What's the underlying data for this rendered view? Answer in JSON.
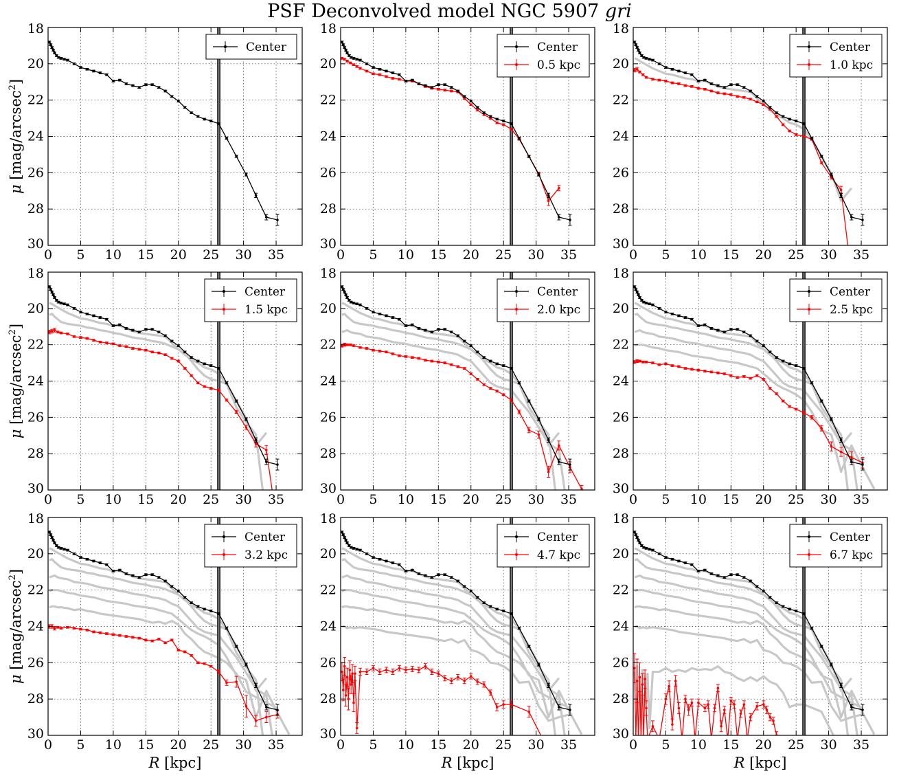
{
  "figure": {
    "title_prefix": "PSF Deconvolved model NGC 5907 ",
    "title_band": "gri"
  },
  "chart_data": {
    "type": "line",
    "layout": "3x3 grid",
    "xlabel_symbol": "R",
    "xlabel_unit": " [kpc]",
    "ylabel_symbol": "μ",
    "ylabel_unit": " [mag/arcsec",
    "ylabel_sup": "2",
    "ylabel_close": "]",
    "xlim": [
      0,
      39
    ],
    "ylim": [
      30,
      18
    ],
    "xticks": [
      0,
      5,
      10,
      15,
      20,
      25,
      30,
      35
    ],
    "yticks": [
      18,
      20,
      22,
      24,
      26,
      28,
      30
    ],
    "grid": true,
    "vertical_line_x": 26.2,
    "legend_position": "top-right",
    "colors": {
      "center": "#000000",
      "offset": "#ff0000",
      "background": "#c8c8c8"
    },
    "center_series": {
      "name": "Center",
      "x": [
        0.2,
        0.4,
        0.6,
        0.8,
        1.0,
        1.3,
        1.6,
        2.0,
        2.5,
        3.0,
        4.0,
        5.0,
        6.0,
        7.0,
        8.0,
        9.0,
        10.0,
        11.0,
        12.0,
        13.0,
        14.0,
        15.0,
        16.0,
        17.0,
        18.0,
        19.0,
        20.0,
        21.0,
        22.0,
        23.0,
        24.0,
        25.0,
        26.2,
        27.4,
        28.9,
        30.4,
        31.9,
        33.5,
        35.2
      ],
      "y": [
        18.8,
        18.95,
        19.1,
        19.25,
        19.4,
        19.55,
        19.65,
        19.7,
        19.75,
        19.8,
        20.0,
        20.2,
        20.3,
        20.4,
        20.5,
        20.6,
        20.95,
        20.9,
        21.1,
        21.2,
        21.3,
        21.15,
        21.15,
        21.3,
        21.5,
        21.8,
        22.05,
        22.4,
        22.7,
        22.9,
        23.05,
        23.15,
        23.3,
        24.1,
        25.1,
        26.1,
        27.25,
        28.45,
        28.6
      ],
      "yerr": [
        0.05,
        0.05,
        0.05,
        0.05,
        0.05,
        0.05,
        0.05,
        0.05,
        0.05,
        0.05,
        0.05,
        0.05,
        0.05,
        0.05,
        0.05,
        0.05,
        0.05,
        0.05,
        0.05,
        0.05,
        0.05,
        0.05,
        0.05,
        0.05,
        0.05,
        0.05,
        0.05,
        0.05,
        0.05,
        0.05,
        0.05,
        0.05,
        0.05,
        0.06,
        0.06,
        0.08,
        0.12,
        0.15,
        0.3
      ]
    },
    "panels": [
      {
        "label": "",
        "x": [],
        "y": [],
        "yerr": []
      },
      {
        "label": "0.5 kpc",
        "x": [
          0.2,
          0.6,
          1.0,
          1.5,
          2.0,
          2.5,
          3.0,
          4.0,
          5.0,
          6.0,
          7.0,
          8.0,
          9.0,
          10.0,
          11.0,
          12.0,
          13.0,
          14.0,
          15.0,
          16.0,
          17.0,
          18.0,
          19.0,
          20.0,
          21.0,
          22.0,
          23.0,
          24.0,
          25.0,
          26.2,
          27.4,
          28.9,
          30.4,
          31.9,
          33.5
        ],
        "y": [
          19.7,
          19.75,
          19.85,
          19.95,
          20.05,
          20.15,
          20.25,
          20.4,
          20.55,
          20.6,
          20.7,
          20.8,
          20.85,
          20.95,
          20.95,
          21.1,
          21.25,
          21.35,
          21.4,
          21.45,
          21.5,
          21.55,
          21.9,
          22.25,
          22.55,
          22.8,
          23.0,
          23.25,
          23.35,
          23.6,
          24.15,
          25.1,
          26.05,
          27.55,
          26.85
        ],
        "yerr": [
          0.05,
          0.05,
          0.05,
          0.05,
          0.05,
          0.05,
          0.05,
          0.05,
          0.05,
          0.05,
          0.05,
          0.05,
          0.05,
          0.05,
          0.05,
          0.05,
          0.05,
          0.05,
          0.05,
          0.05,
          0.05,
          0.05,
          0.05,
          0.05,
          0.05,
          0.05,
          0.05,
          0.05,
          0.05,
          0.05,
          0.06,
          0.06,
          0.08,
          0.25,
          0.15
        ]
      },
      {
        "label": "1.0 kpc",
        "x": [
          0.2,
          0.6,
          1.0,
          1.5,
          2.0,
          3.0,
          4.0,
          5.0,
          6.0,
          7.0,
          8.0,
          9.0,
          10.0,
          11.0,
          12.0,
          13.0,
          14.0,
          15.0,
          16.0,
          17.0,
          18.0,
          19.0,
          20.0,
          21.0,
          22.0,
          23.0,
          24.0,
          25.0,
          26.2,
          27.4,
          28.9,
          30.4,
          31.9,
          33.0
        ],
        "y": [
          20.35,
          20.3,
          20.45,
          20.6,
          20.75,
          20.85,
          20.9,
          20.95,
          21.05,
          21.1,
          21.2,
          21.25,
          21.35,
          21.4,
          21.5,
          21.6,
          21.65,
          21.7,
          21.8,
          21.85,
          21.95,
          22.1,
          22.25,
          22.5,
          22.9,
          23.35,
          23.7,
          23.9,
          24.0,
          24.15,
          25.45,
          26.25,
          26.95,
          30.2
        ],
        "yerr": [
          0.1,
          0.1,
          0.05,
          0.05,
          0.05,
          0.05,
          0.05,
          0.05,
          0.05,
          0.05,
          0.05,
          0.05,
          0.05,
          0.05,
          0.05,
          0.05,
          0.05,
          0.05,
          0.05,
          0.05,
          0.05,
          0.05,
          0.05,
          0.05,
          0.05,
          0.05,
          0.05,
          0.05,
          0.05,
          0.06,
          0.06,
          0.1,
          0.2,
          0
        ]
      },
      {
        "label": "1.5 kpc",
        "x": [
          0.2,
          0.6,
          1.0,
          1.5,
          2.0,
          3.0,
          4.0,
          5.0,
          6.0,
          7.0,
          8.0,
          9.0,
          10.0,
          11.0,
          12.0,
          13.0,
          14.0,
          15.0,
          16.0,
          17.0,
          18.0,
          19.0,
          20.0,
          21.0,
          22.0,
          23.0,
          24.0,
          25.0,
          26.2,
          27.4,
          28.9,
          30.4,
          31.9,
          33.5,
          34.5
        ],
        "y": [
          21.3,
          21.25,
          21.2,
          21.3,
          21.35,
          21.4,
          21.55,
          21.6,
          21.65,
          21.75,
          21.85,
          21.9,
          21.95,
          22.05,
          22.1,
          22.2,
          22.25,
          22.3,
          22.4,
          22.45,
          22.55,
          22.75,
          22.9,
          23.3,
          23.7,
          24.1,
          24.3,
          24.4,
          24.5,
          25.05,
          25.7,
          26.55,
          27.45,
          27.8,
          30.3
        ],
        "yerr": [
          0.1,
          0.1,
          0.1,
          0.05,
          0.05,
          0.05,
          0.05,
          0.05,
          0.05,
          0.05,
          0.05,
          0.05,
          0.05,
          0.05,
          0.05,
          0.05,
          0.05,
          0.05,
          0.05,
          0.05,
          0.05,
          0.05,
          0.05,
          0.05,
          0.05,
          0.05,
          0.05,
          0.05,
          0.06,
          0.06,
          0.08,
          0.12,
          0.18,
          0.25,
          0
        ]
      },
      {
        "label": "2.0 kpc",
        "x": [
          0.2,
          0.6,
          1.0,
          1.5,
          2.0,
          3.0,
          4.0,
          5.0,
          6.0,
          7.0,
          8.0,
          9.0,
          10.0,
          11.0,
          12.0,
          13.0,
          14.0,
          15.0,
          16.0,
          17.0,
          18.0,
          19.0,
          20.0,
          21.0,
          22.0,
          23.0,
          24.0,
          25.0,
          26.2,
          27.4,
          28.9,
          30.4,
          31.9,
          33.5,
          35.2,
          37.0
        ],
        "y": [
          22.05,
          22.0,
          22.0,
          22.0,
          22.05,
          22.15,
          22.2,
          22.3,
          22.35,
          22.4,
          22.5,
          22.6,
          22.65,
          22.7,
          22.75,
          22.85,
          22.9,
          22.95,
          23.0,
          23.1,
          23.2,
          23.3,
          23.6,
          23.9,
          24.2,
          24.4,
          24.55,
          24.75,
          25.05,
          25.7,
          26.7,
          26.95,
          29.0,
          27.55,
          28.75,
          29.95
        ],
        "yerr": [
          0.08,
          0.08,
          0.05,
          0.05,
          0.05,
          0.05,
          0.05,
          0.05,
          0.05,
          0.05,
          0.05,
          0.05,
          0.05,
          0.05,
          0.05,
          0.05,
          0.05,
          0.05,
          0.05,
          0.05,
          0.05,
          0.05,
          0.05,
          0.05,
          0.05,
          0.05,
          0.05,
          0.05,
          0.08,
          0.1,
          0.15,
          0.2,
          0.3,
          0.25,
          0.3,
          0.2
        ]
      },
      {
        "label": "2.5 kpc",
        "x": [
          0.2,
          0.6,
          1.0,
          1.5,
          2.0,
          3.0,
          4.0,
          5.0,
          6.0,
          7.0,
          8.0,
          9.0,
          10.0,
          11.0,
          12.0,
          13.0,
          14.0,
          15.0,
          16.0,
          17.0,
          18.0,
          19.0,
          20.0,
          21.0,
          22.0,
          23.0,
          24.0,
          25.0,
          26.2,
          27.4,
          28.9,
          30.4,
          31.9,
          33.5,
          35.2
        ],
        "y": [
          22.95,
          22.9,
          22.9,
          22.95,
          22.95,
          23.0,
          23.1,
          23.05,
          23.15,
          23.2,
          23.3,
          23.35,
          23.4,
          23.45,
          23.5,
          23.55,
          23.6,
          23.7,
          23.8,
          23.75,
          23.85,
          23.7,
          23.9,
          24.4,
          24.7,
          25.1,
          25.4,
          25.55,
          25.75,
          26.0,
          26.6,
          27.6,
          27.9,
          28.2,
          28.5
        ],
        "yerr": [
          0.08,
          0.08,
          0.05,
          0.05,
          0.05,
          0.05,
          0.05,
          0.05,
          0.05,
          0.05,
          0.05,
          0.05,
          0.05,
          0.05,
          0.05,
          0.05,
          0.05,
          0.05,
          0.05,
          0.05,
          0.05,
          0.05,
          0.05,
          0.05,
          0.05,
          0.05,
          0.05,
          0.05,
          0.08,
          0.1,
          0.15,
          0.25,
          0.25,
          0.3,
          0.3
        ]
      },
      {
        "label": "3.2 kpc",
        "x": [
          0.2,
          0.6,
          1.0,
          1.5,
          2.0,
          3.0,
          4.0,
          5.0,
          6.0,
          7.0,
          8.0,
          9.0,
          10.0,
          11.0,
          12.0,
          13.0,
          14.0,
          15.0,
          16.0,
          17.0,
          18.0,
          19.0,
          20.0,
          21.0,
          22.0,
          23.0,
          24.0,
          25.0,
          26.2,
          27.4,
          28.9,
          30.4,
          31.9,
          33.5,
          35.2
        ],
        "y": [
          24.0,
          24.0,
          24.1,
          24.05,
          24.1,
          24.05,
          24.1,
          24.15,
          24.2,
          24.3,
          24.35,
          24.4,
          24.45,
          24.5,
          24.55,
          24.6,
          24.65,
          24.75,
          24.8,
          24.7,
          24.9,
          24.75,
          25.3,
          25.4,
          25.6,
          26.0,
          26.05,
          26.2,
          26.5,
          27.1,
          27.05,
          28.4,
          29.2,
          29.0,
          28.85
        ],
        "yerr": [
          0.1,
          0.1,
          0.1,
          0.05,
          0.05,
          0.05,
          0.05,
          0.05,
          0.05,
          0.05,
          0.05,
          0.05,
          0.05,
          0.05,
          0.05,
          0.05,
          0.05,
          0.05,
          0.05,
          0.05,
          0.05,
          0.05,
          0.05,
          0.05,
          0.05,
          0.05,
          0.05,
          0.05,
          0.1,
          0.15,
          0.3,
          0.6,
          0.3,
          0.3,
          0.2
        ]
      },
      {
        "label": "4.7 kpc",
        "x": [
          0.2,
          0.4,
          0.6,
          0.8,
          1.0,
          1.2,
          1.4,
          1.6,
          1.8,
          2.0,
          2.2,
          2.5,
          3.0,
          4.0,
          5.0,
          6.0,
          7.0,
          8.0,
          9.0,
          10.0,
          11.0,
          12.0,
          13.0,
          14.0,
          15.0,
          16.0,
          17.0,
          18.0,
          19.0,
          20.0,
          21.0,
          22.0,
          23.0,
          24.0,
          25.0,
          26.2,
          28.9,
          31.0
        ],
        "y": [
          26.5,
          27.5,
          26.2,
          27.8,
          26.8,
          28.0,
          26.4,
          27.2,
          26.6,
          28.2,
          26.6,
          29.6,
          26.5,
          26.5,
          26.3,
          26.5,
          26.4,
          26.5,
          26.3,
          26.4,
          26.35,
          26.4,
          26.2,
          26.5,
          26.6,
          26.85,
          27.0,
          26.8,
          27.0,
          26.75,
          27.05,
          27.2,
          27.65,
          28.45,
          28.3,
          28.3,
          28.7,
          30.2
        ],
        "yerr": [
          0.5,
          0.6,
          0.5,
          0.6,
          0.5,
          0.6,
          0.5,
          0.5,
          0.5,
          0.5,
          0.4,
          0.3,
          0.2,
          0.15,
          0.15,
          0.15,
          0.15,
          0.15,
          0.15,
          0.15,
          0.15,
          0.15,
          0.15,
          0.15,
          0.15,
          0.15,
          0.15,
          0.15,
          0.15,
          0.15,
          0.15,
          0.15,
          0.15,
          0.2,
          0.2,
          0.2,
          0.3,
          0
        ]
      },
      {
        "label": "6.7 kpc",
        "x": [
          0.2,
          0.4,
          0.6,
          0.8,
          1.0,
          1.2,
          1.4,
          1.6,
          1.8,
          2.0,
          2.2,
          3.0,
          4.0,
          5.0,
          5.5,
          6.0,
          6.5,
          7.0,
          7.5,
          8.0,
          8.5,
          9.0,
          9.5,
          10.0,
          11.0,
          11.5,
          12.0,
          12.5,
          13.0,
          13.5,
          14.0,
          14.5,
          15.0,
          15.5,
          16.0,
          16.5,
          17.0,
          17.5,
          18.0,
          19.0,
          20.0,
          20.5,
          21.0,
          21.5,
          22.0,
          23.0
        ],
        "y": [
          26.3,
          30.2,
          27.0,
          30.2,
          26.8,
          30.2,
          27.2,
          30.2,
          26.9,
          28.5,
          30.2,
          29.5,
          30.2,
          28.0,
          27.3,
          29.4,
          27.0,
          28.5,
          30.2,
          28.0,
          28.6,
          28.2,
          30.2,
          28.2,
          28.5,
          28.3,
          30.2,
          28.5,
          27.4,
          29.5,
          28.6,
          30.2,
          28.1,
          28.3,
          30.2,
          28.8,
          28.3,
          30.2,
          29.0,
          28.4,
          28.3,
          28.6,
          29.0,
          29.2,
          30.0,
          30.2
        ],
        "yerr": [
          0.8,
          0,
          1.2,
          0,
          0.8,
          0,
          0.6,
          0,
          0.5,
          0.4,
          0,
          0.3,
          0,
          0.3,
          0.3,
          0.3,
          0.3,
          0.3,
          0,
          0.2,
          0.3,
          0.2,
          0,
          0.2,
          0.2,
          0.2,
          0,
          0.2,
          0.2,
          0.3,
          0.2,
          0,
          0.2,
          0.2,
          0,
          0.2,
          0.2,
          0,
          0.2,
          0.2,
          0.2,
          0.2,
          0.2,
          0.2,
          0.2,
          0
        ]
      }
    ]
  }
}
